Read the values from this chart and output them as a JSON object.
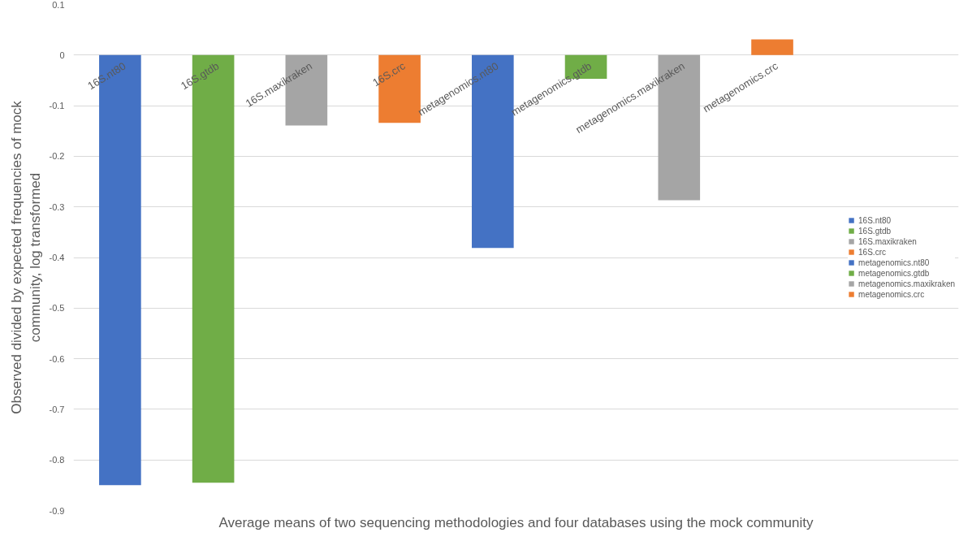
{
  "chart_data": {
    "type": "bar",
    "xlabel": "Average means of two sequencing methodologies and four databases using the mock community",
    "ylabel": "Observed divided by expected frequencies of mock\ncommunity, log transformed",
    "categories": [
      "16S.nt80",
      "16S.gtdb",
      "16S.maxikraken",
      "16S.crc",
      "metagenomics.nt80",
      "metagenomics.gtdb",
      "metagenomics.maxikraken",
      "metagenomics.crc"
    ],
    "series": [
      {
        "name": "16S.nt80",
        "color": "#4472c4",
        "values": [
          -0.85,
          null,
          null,
          null,
          null,
          null,
          null,
          null
        ]
      },
      {
        "name": "16S.gtdb",
        "color": "#70ad47",
        "values": [
          null,
          -0.845,
          null,
          null,
          null,
          null,
          null,
          null
        ]
      },
      {
        "name": "16S.maxikraken",
        "color": "#a5a5a5",
        "values": [
          null,
          null,
          -0.139,
          null,
          null,
          null,
          null,
          null
        ]
      },
      {
        "name": "16S.crc",
        "color": "#ed7d31",
        "values": [
          null,
          null,
          null,
          -0.134,
          null,
          null,
          null,
          null
        ]
      },
      {
        "name": "metagenomics.nt80",
        "color": "#4472c4",
        "values": [
          null,
          null,
          null,
          null,
          -0.381,
          null,
          null,
          null
        ]
      },
      {
        "name": "metagenomics.gtdb",
        "color": "#70ad47",
        "values": [
          null,
          null,
          null,
          null,
          null,
          -0.047,
          null,
          null
        ]
      },
      {
        "name": "metagenomics.maxikraken",
        "color": "#a5a5a5",
        "values": [
          null,
          null,
          null,
          null,
          null,
          null,
          -0.287,
          null
        ]
      },
      {
        "name": "metagenomics.crc",
        "color": "#ed7d31",
        "values": [
          null,
          null,
          null,
          null,
          null,
          null,
          null,
          0.031
        ]
      }
    ],
    "ylim": [
      -0.9,
      0.1
    ],
    "yticks": [
      0.1,
      0,
      -0.1,
      -0.2,
      -0.3,
      -0.4,
      -0.5,
      -0.6,
      -0.7,
      -0.8,
      -0.9
    ],
    "grid": "y",
    "legend": "right"
  }
}
